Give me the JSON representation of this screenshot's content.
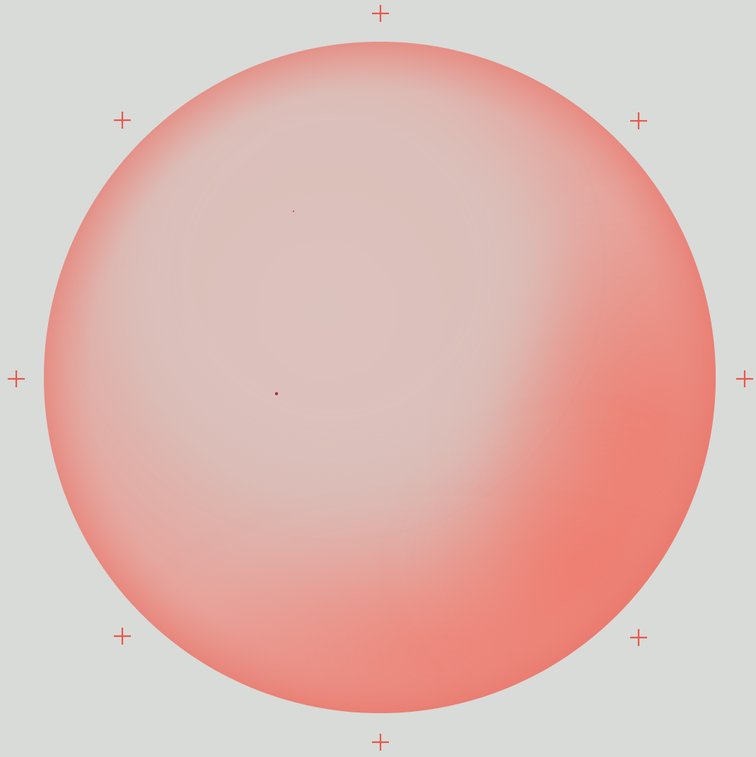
{
  "colors": {
    "paper": "#d9dbd8",
    "disc_light": "#dbbdb8",
    "disc_mid": "#e9a29a",
    "disc_deep": "#ef7a6c",
    "mark": "#e8574b",
    "speck": "#a8303a"
  },
  "marks": {
    "count": 8,
    "symbol": "registration-cross"
  }
}
